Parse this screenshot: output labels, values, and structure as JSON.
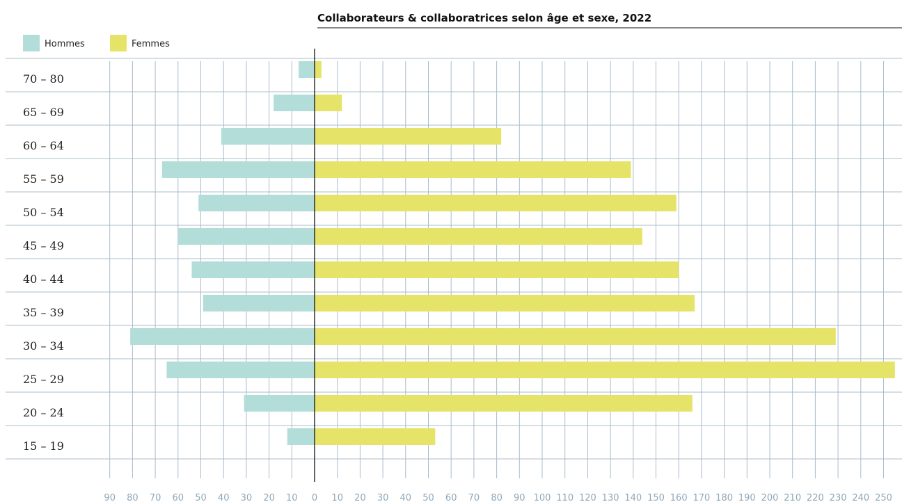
{
  "chart_data": {
    "type": "bar",
    "orientation": "horizontal-diverging",
    "title": "Collaborateurs & collaboratrices selon âge et sexe, 2022",
    "categories": [
      "70 – 80",
      "65 – 69",
      "60 – 64",
      "55 – 59",
      "50 – 54",
      "45 – 49",
      "40 – 44",
      "35 – 39",
      "30 – 34",
      "25 – 29",
      "20 – 24",
      "15 – 19"
    ],
    "series": [
      {
        "name": "Hommes",
        "color": "#b3ddd9",
        "direction": "left",
        "values": [
          7,
          18,
          41,
          67,
          51,
          60,
          54,
          49,
          81,
          65,
          31,
          12
        ]
      },
      {
        "name": "Femmes",
        "color": "#e6e468",
        "direction": "right",
        "values": [
          3,
          12,
          82,
          139,
          159,
          144,
          160,
          167,
          229,
          255,
          166,
          53
        ]
      }
    ],
    "x_ticks_left": [
      "90",
      "80",
      "70",
      "60",
      "50",
      "40",
      "30",
      "20",
      "10",
      "0"
    ],
    "x_ticks_right": [
      "10",
      "20",
      "30",
      "40",
      "50",
      "60",
      "70",
      "80",
      "90",
      "100",
      "110",
      "120",
      "130",
      "140",
      "150",
      "160",
      "170",
      "180",
      "190",
      "200",
      "210",
      "220",
      "230",
      "240",
      "250"
    ],
    "xlim": [
      -90,
      255
    ],
    "grid": true,
    "legend": "top-left",
    "colors": {
      "grid": "#a9bccb",
      "tick_text": "#8fa7b8",
      "axis": "#111111"
    }
  }
}
